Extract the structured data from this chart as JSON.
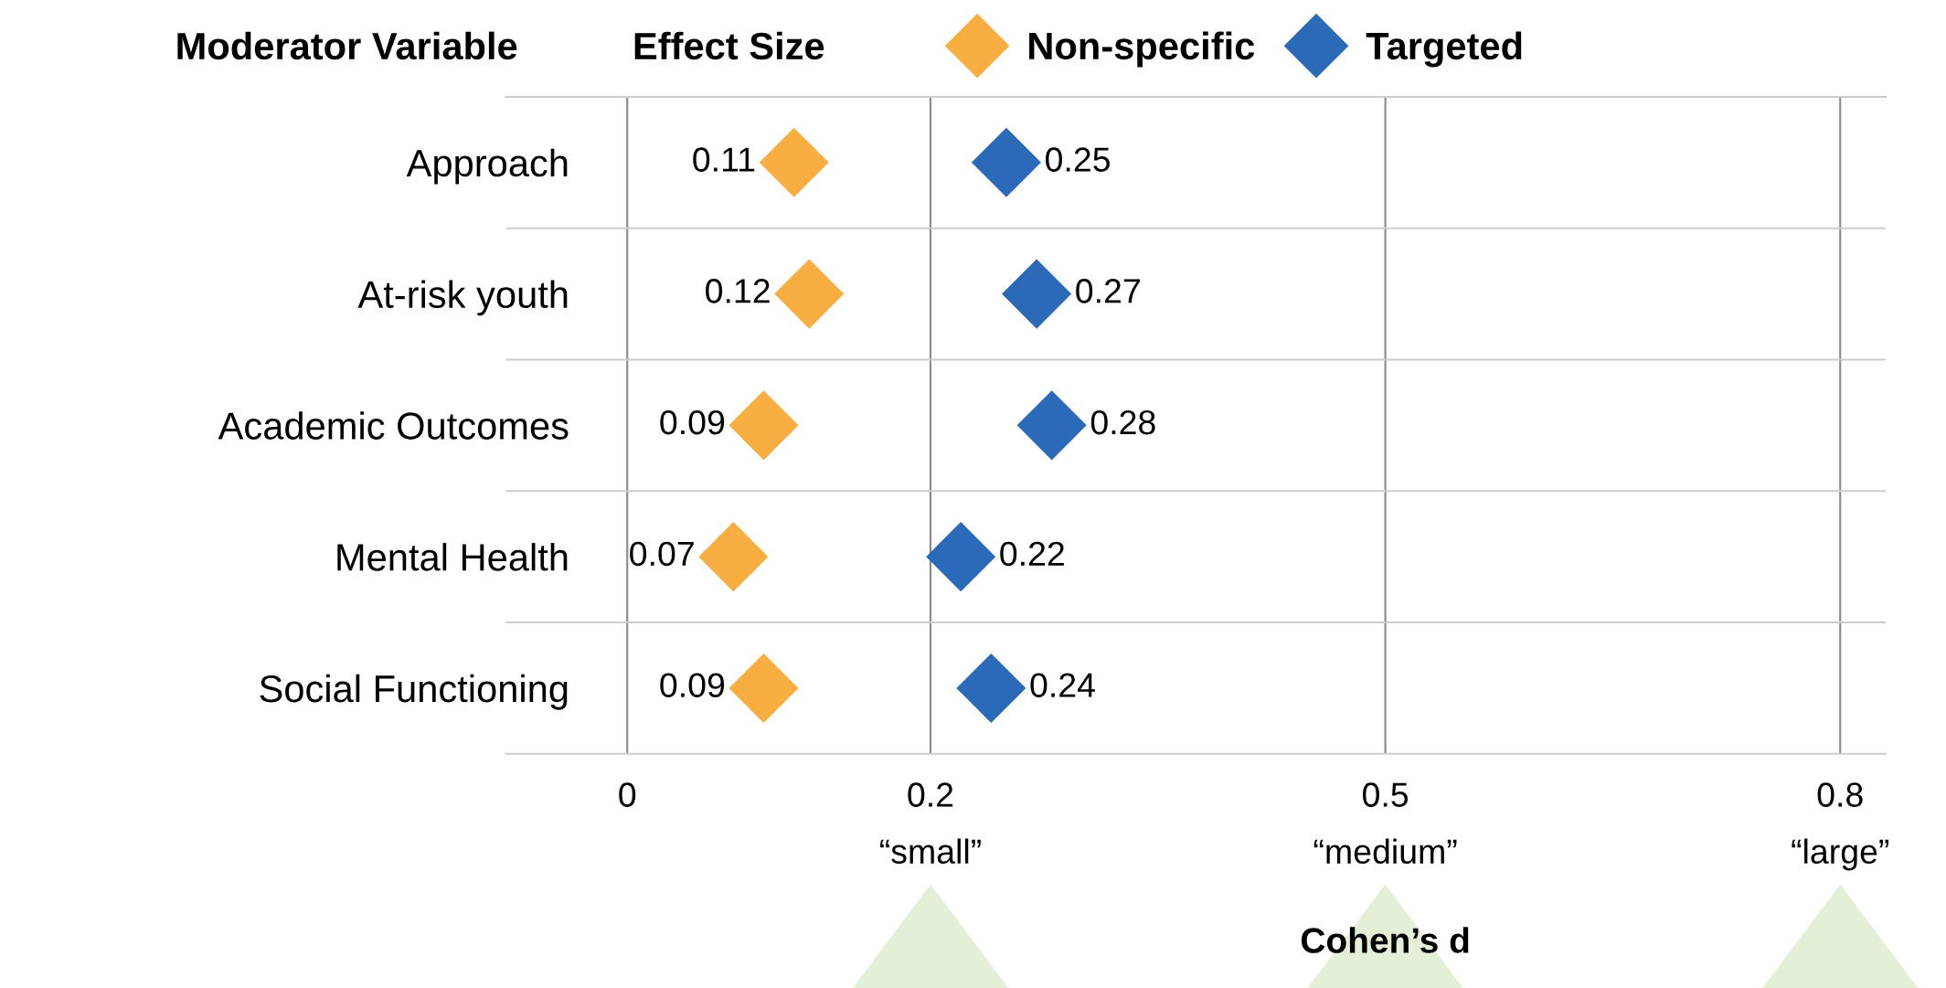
{
  "chart_data": {
    "type": "scatter",
    "orientation": "horizontal",
    "ylabel": "Moderator Variable",
    "legend_title": "Effect Size",
    "xlabel": "Cohen’s d",
    "categories": [
      "Approach",
      "At-risk youth",
      "Academic Outcomes",
      "Mental Health",
      "Social Functioning"
    ],
    "series": [
      {
        "name": "Non-specific",
        "color": "#f9ae42",
        "values": [
          0.11,
          0.12,
          0.09,
          0.07,
          0.09
        ]
      },
      {
        "name": "Targeted",
        "color": "#2a6ab8",
        "values": [
          0.25,
          0.27,
          0.28,
          0.22,
          0.24
        ]
      }
    ],
    "xlim": [
      -0.08,
      0.83
    ],
    "xticks": [
      0,
      {
        "value": 0.2,
        "label": "0.2\n“small”"
      },
      {
        "value": 0.5,
        "label": "0.5\n“medium”"
      },
      {
        "value": 0.8,
        "label": "0.8\n“large”"
      }
    ],
    "grid": "x",
    "marker": "diamond",
    "data_labels": true,
    "legend": "top"
  }
}
